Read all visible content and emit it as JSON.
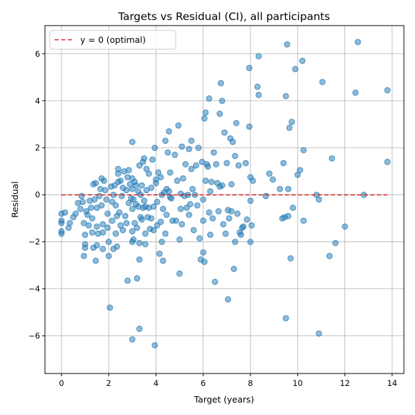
{
  "chart_data": {
    "type": "scatter",
    "title": "Targets vs Residual (CI), all participants",
    "xlabel": "Target (years)",
    "ylabel": "Residual",
    "xlim": [
      -0.7,
      14.5
    ],
    "ylim": [
      -7.6,
      7.2
    ],
    "xticks": [
      0,
      2,
      4,
      6,
      8,
      10,
      12,
      14
    ],
    "yticks": [
      -6,
      -4,
      -2,
      0,
      2,
      4,
      6
    ],
    "xtick_labels": [
      "0",
      "2",
      "4",
      "6",
      "8",
      "10",
      "12",
      "14"
    ],
    "ytick_labels": [
      "−6",
      "−4",
      "−2",
      "0",
      "2",
      "4",
      "6"
    ],
    "grid": true,
    "legend": {
      "placement": "top-left",
      "entries": [
        {
          "label": "y = 0 (optimal)",
          "color": "#d62728",
          "style": "dashed"
        }
      ]
    },
    "reference_line": {
      "y": 0,
      "x_range": [
        0,
        13.8
      ],
      "color": "#d62728"
    },
    "point_color": "#1f77b4",
    "points": [
      [
        0.0,
        -0.8
      ],
      [
        0.0,
        -1.1
      ],
      [
        0.0,
        -1.2
      ],
      [
        0.0,
        -1.55
      ],
      [
        0.0,
        -1.65
      ],
      [
        0.3,
        -1.4
      ],
      [
        0.35,
        -1.2
      ],
      [
        0.5,
        -0.95
      ],
      [
        0.6,
        -0.8
      ],
      [
        0.7,
        -0.35
      ],
      [
        0.8,
        -0.6
      ],
      [
        0.85,
        -0.05
      ],
      [
        0.9,
        -0.3
      ],
      [
        0.95,
        -1.2
      ],
      [
        1.0,
        -1.7
      ],
      [
        1.0,
        -2.1
      ],
      [
        1.0,
        -2.25
      ],
      [
        0.95,
        -2.6
      ],
      [
        1.05,
        -0.7
      ],
      [
        1.1,
        -0.85
      ],
      [
        1.15,
        -1.3
      ],
      [
        1.2,
        -0.25
      ],
      [
        1.25,
        -0.55
      ],
      [
        1.3,
        -1.0
      ],
      [
        1.3,
        -1.6
      ],
      [
        1.35,
        0.45
      ],
      [
        1.4,
        -0.2
      ],
      [
        1.45,
        0.5
      ],
      [
        1.5,
        -0.55
      ],
      [
        1.5,
        -1.35
      ],
      [
        1.5,
        -2.15
      ],
      [
        1.45,
        -2.8
      ],
      [
        1.35,
        -2.25
      ],
      [
        1.6,
        -0.05
      ],
      [
        1.65,
        0.25
      ],
      [
        1.7,
        0.7
      ],
      [
        1.7,
        -0.45
      ],
      [
        1.75,
        -1.25
      ],
      [
        1.75,
        -1.6
      ],
      [
        1.75,
        -2.3
      ],
      [
        1.8,
        0.6
      ],
      [
        1.85,
        0.2
      ],
      [
        1.9,
        -0.2
      ],
      [
        1.95,
        -0.8
      ],
      [
        1.95,
        -1.4
      ],
      [
        2.0,
        -2.0
      ],
      [
        2.0,
        -2.6
      ],
      [
        2.05,
        -4.8
      ],
      [
        2.1,
        0.35
      ],
      [
        2.15,
        -0.3
      ],
      [
        2.15,
        -1.1
      ],
      [
        2.2,
        -2.3
      ],
      [
        2.2,
        0.0
      ],
      [
        2.25,
        0.4
      ],
      [
        2.3,
        -0.45
      ],
      [
        2.3,
        -1.65
      ],
      [
        2.35,
        -0.9
      ],
      [
        2.35,
        -2.2
      ],
      [
        2.4,
        0.55
      ],
      [
        2.4,
        0.9
      ],
      [
        2.4,
        1.1
      ],
      [
        2.45,
        -0.75
      ],
      [
        2.5,
        -1.3
      ],
      [
        2.5,
        0.6
      ],
      [
        2.55,
        -0.05
      ],
      [
        2.6,
        0.3
      ],
      [
        2.6,
        -1.5
      ],
      [
        2.65,
        1.0
      ],
      [
        2.7,
        -0.9
      ],
      [
        2.75,
        -1.2
      ],
      [
        2.8,
        -3.65
      ],
      [
        2.8,
        0.75
      ],
      [
        2.85,
        -0.35
      ],
      [
        2.85,
        1.05
      ],
      [
        2.9,
        0.45
      ],
      [
        2.95,
        -0.15
      ],
      [
        3.0,
        -2.0
      ],
      [
        3.0,
        -1.55
      ],
      [
        3.0,
        -0.6
      ],
      [
        3.0,
        0.25
      ],
      [
        3.0,
        0.7
      ],
      [
        3.0,
        2.25
      ],
      [
        3.0,
        -6.15
      ],
      [
        3.05,
        -1.9
      ],
      [
        3.05,
        -0.2
      ],
      [
        3.1,
        0.55
      ],
      [
        3.1,
        -1.2
      ],
      [
        3.15,
        -0.4
      ],
      [
        3.15,
        0.4
      ],
      [
        3.2,
        -3.55
      ],
      [
        3.2,
        -1.4
      ],
      [
        3.25,
        0.15
      ],
      [
        3.25,
        -0.5
      ],
      [
        3.3,
        -5.7
      ],
      [
        3.3,
        -2.05
      ],
      [
        3.3,
        -2.75
      ],
      [
        3.3,
        1.25
      ],
      [
        3.35,
        -0.95
      ],
      [
        3.4,
        0.4
      ],
      [
        3.4,
        -1.05
      ],
      [
        3.45,
        1.4
      ],
      [
        3.45,
        -0.55
      ],
      [
        3.5,
        1.55
      ],
      [
        3.5,
        -0.25
      ],
      [
        3.55,
        -2.1
      ],
      [
        3.55,
        -0.5
      ],
      [
        3.55,
        -1.65
      ],
      [
        3.6,
        0.2
      ],
      [
        3.6,
        1.1
      ],
      [
        3.65,
        -0.95
      ],
      [
        3.7,
        0.9
      ],
      [
        3.7,
        -0.55
      ],
      [
        3.75,
        -1.45
      ],
      [
        3.8,
        0.3
      ],
      [
        3.8,
        -1.0
      ],
      [
        3.85,
        1.5
      ],
      [
        3.9,
        -0.5
      ],
      [
        3.9,
        -1.5
      ],
      [
        3.95,
        2.0
      ],
      [
        3.95,
        -6.4
      ],
      [
        4.0,
        0.65
      ],
      [
        4.0,
        0.5
      ],
      [
        4.05,
        -0.3
      ],
      [
        4.05,
        -1.3
      ],
      [
        4.1,
        0.95
      ],
      [
        4.15,
        -2.5
      ],
      [
        4.2,
        -1.15
      ],
      [
        4.2,
        0.75
      ],
      [
        4.25,
        -2.0
      ],
      [
        4.25,
        0.0
      ],
      [
        4.3,
        -2.8
      ],
      [
        4.3,
        -0.6
      ],
      [
        4.35,
        0.1
      ],
      [
        4.4,
        2.3
      ],
      [
        4.4,
        -1.65
      ],
      [
        4.45,
        -0.85
      ],
      [
        4.45,
        0.25
      ],
      [
        4.5,
        1.8
      ],
      [
        4.55,
        0.15
      ],
      [
        4.55,
        2.7
      ],
      [
        4.6,
        -0.1
      ],
      [
        4.6,
        0.95
      ],
      [
        4.7,
        -1.1
      ],
      [
        4.8,
        1.7
      ],
      [
        4.85,
        -1.1
      ],
      [
        4.9,
        0.6
      ],
      [
        4.95,
        2.95
      ],
      [
        5.0,
        -1.9
      ],
      [
        5.0,
        -3.35
      ],
      [
        5.05,
        0.05
      ],
      [
        5.05,
        -0.6
      ],
      [
        5.1,
        2.05
      ],
      [
        5.1,
        -1.25
      ],
      [
        5.15,
        0.7
      ],
      [
        5.2,
        -0.05
      ],
      [
        5.25,
        1.3
      ],
      [
        5.3,
        -0.55
      ],
      [
        5.35,
        0.0
      ],
      [
        5.4,
        1.95
      ],
      [
        5.4,
        -0.85
      ],
      [
        5.45,
        -0.4
      ],
      [
        5.5,
        2.3
      ],
      [
        5.5,
        1.1
      ],
      [
        5.55,
        0.25
      ],
      [
        5.6,
        -1.5
      ],
      [
        5.65,
        0.0
      ],
      [
        5.7,
        1.25
      ],
      [
        5.75,
        -0.45
      ],
      [
        5.8,
        2.0
      ],
      [
        5.85,
        -1.85
      ],
      [
        5.9,
        -2.75
      ],
      [
        5.95,
        1.4
      ],
      [
        6.0,
        -0.2
      ],
      [
        6.0,
        -1.1
      ],
      [
        6.0,
        -2.45
      ],
      [
        6.05,
        3.25
      ],
      [
        6.05,
        -2.85
      ],
      [
        6.1,
        3.5
      ],
      [
        6.1,
        0.6
      ],
      [
        6.15,
        1.3
      ],
      [
        6.2,
        1.2
      ],
      [
        6.25,
        4.1
      ],
      [
        6.25,
        -0.75
      ],
      [
        6.3,
        -1.7
      ],
      [
        6.3,
        0.15
      ],
      [
        6.35,
        0.55
      ],
      [
        6.4,
        -1.0
      ],
      [
        6.45,
        1.8
      ],
      [
        6.5,
        -3.7
      ],
      [
        6.55,
        1.3
      ],
      [
        6.6,
        0.5
      ],
      [
        6.65,
        -0.7
      ],
      [
        6.7,
        0.35
      ],
      [
        6.7,
        3.45
      ],
      [
        6.75,
        4.75
      ],
      [
        6.8,
        4.0
      ],
      [
        6.8,
        0.4
      ],
      [
        6.85,
        -1.25
      ],
      [
        6.9,
        2.65
      ],
      [
        6.95,
        -1.65
      ],
      [
        7.0,
        1.35
      ],
      [
        7.05,
        -0.65
      ],
      [
        7.05,
        -4.45
      ],
      [
        7.1,
        -1.0
      ],
      [
        7.15,
        2.4
      ],
      [
        7.2,
        0.45
      ],
      [
        7.2,
        -0.7
      ],
      [
        7.25,
        2.25
      ],
      [
        7.3,
        -3.15
      ],
      [
        7.35,
        1.65
      ],
      [
        7.35,
        -2.0
      ],
      [
        7.4,
        3.05
      ],
      [
        7.45,
        -0.8
      ],
      [
        7.5,
        1.25
      ],
      [
        7.55,
        -1.6
      ],
      [
        7.6,
        -1.7
      ],
      [
        7.65,
        -1.4
      ],
      [
        7.7,
        -1.35
      ],
      [
        7.8,
        1.35
      ],
      [
        7.85,
        -1.05
      ],
      [
        7.95,
        5.4
      ],
      [
        7.95,
        2.9
      ],
      [
        8.0,
        -0.25
      ],
      [
        8.0,
        0.75
      ],
      [
        8.0,
        -2.0
      ],
      [
        8.05,
        -1.3
      ],
      [
        8.1,
        0.6
      ],
      [
        8.3,
        4.6
      ],
      [
        8.35,
        4.25
      ],
      [
        8.35,
        5.9
      ],
      [
        8.65,
        -0.05
      ],
      [
        8.8,
        0.9
      ],
      [
        8.95,
        0.65
      ],
      [
        9.25,
        0.25
      ],
      [
        9.35,
        -1.0
      ],
      [
        9.4,
        1.35
      ],
      [
        9.45,
        -0.95
      ],
      [
        9.5,
        4.2
      ],
      [
        9.5,
        -5.25
      ],
      [
        9.55,
        6.4
      ],
      [
        9.6,
        -0.9
      ],
      [
        9.6,
        0.25
      ],
      [
        9.65,
        2.85
      ],
      [
        9.7,
        -2.7
      ],
      [
        9.75,
        3.1
      ],
      [
        9.8,
        -0.55
      ],
      [
        9.9,
        5.35
      ],
      [
        10.0,
        0.85
      ],
      [
        10.1,
        1.05
      ],
      [
        10.2,
        5.7
      ],
      [
        10.25,
        1.9
      ],
      [
        10.25,
        -1.1
      ],
      [
        10.8,
        0.0
      ],
      [
        10.9,
        -5.9
      ],
      [
        10.9,
        -0.2
      ],
      [
        11.05,
        4.8
      ],
      [
        11.35,
        -2.6
      ],
      [
        11.45,
        1.55
      ],
      [
        11.6,
        -2.05
      ],
      [
        12.0,
        -1.35
      ],
      [
        12.45,
        4.35
      ],
      [
        12.55,
        6.5
      ],
      [
        13.8,
        4.45
      ],
      [
        13.8,
        1.4
      ],
      [
        12.8,
        0.0
      ],
      [
        0.15,
        -0.75
      ],
      [
        1.55,
        -1.65
      ],
      [
        2.75,
        0.2
      ],
      [
        3.35,
        0.0
      ],
      [
        4.65,
        -0.15
      ]
    ]
  }
}
